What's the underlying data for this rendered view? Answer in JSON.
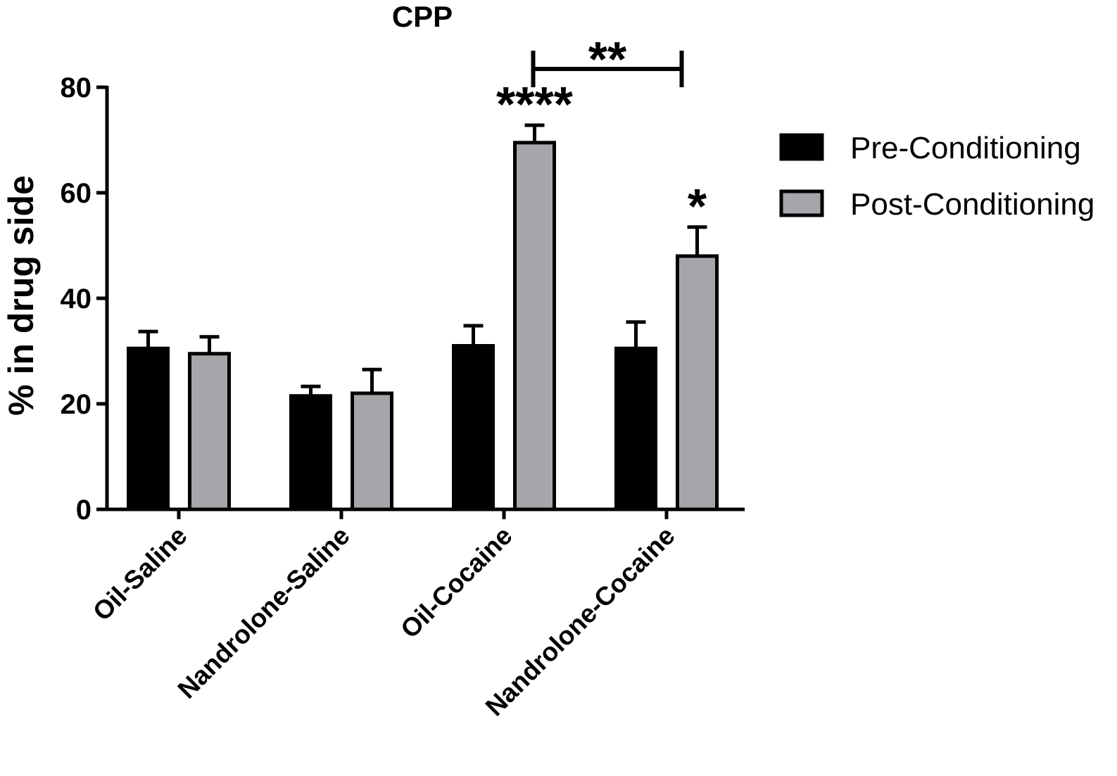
{
  "chart_data": {
    "type": "bar",
    "title": "CPP",
    "xlabel": "",
    "ylabel": "% in drug side",
    "ylim": [
      0,
      80
    ],
    "yticks": [
      0,
      20,
      40,
      60,
      80
    ],
    "grid": false,
    "legend_position": "right",
    "categories": [
      "Oil-Saline",
      "Nandrolone-Saline",
      "Oil-Cocaine",
      "Nandrolone-Cocaine"
    ],
    "series": [
      {
        "name": "Pre-Conditioning",
        "color": "#000000",
        "values": [
          30.5,
          21.5,
          31,
          30.5
        ],
        "errors": [
          3.2,
          1.8,
          3.8,
          5.0
        ]
      },
      {
        "name": "Post-Conditioning",
        "color": "#a6a6aa",
        "values": [
          29.5,
          22,
          69.5,
          48
        ],
        "errors": [
          3.2,
          4.5,
          3.3,
          5.5
        ]
      }
    ],
    "annotations": [
      {
        "text": "****",
        "category": 2,
        "series": 1
      },
      {
        "text": "*",
        "category": 3,
        "series": 1
      }
    ],
    "brackets": [
      {
        "text": "**",
        "from": {
          "category": 2,
          "series": 1
        },
        "to": {
          "category": 3,
          "series": 1
        }
      }
    ]
  },
  "colors": {
    "axis": "#000000",
    "pre_fill": "#000000",
    "post_fill": "#a6a6aa",
    "bar_stroke": "#000000"
  }
}
